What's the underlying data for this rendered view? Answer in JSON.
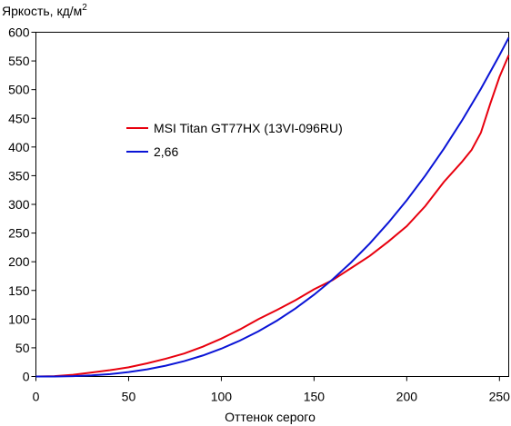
{
  "chart_data": {
    "type": "line",
    "title": "",
    "ylabel": "Яркость, кд/м",
    "ylabel_superscript": "2",
    "xlabel": "Оттенок серого",
    "xlim": [
      0,
      255
    ],
    "ylim": [
      0,
      600
    ],
    "x_ticks": [
      "0",
      "50",
      "100",
      "150",
      "200",
      "250"
    ],
    "y_ticks": [
      "0",
      "50",
      "100",
      "150",
      "200",
      "250",
      "300",
      "350",
      "400",
      "450",
      "500",
      "550",
      "600"
    ],
    "grid": false,
    "legend_position": "center-left",
    "series": [
      {
        "name": "MSI Titan GT77HX (13VI-096RU)",
        "color": "#e8000e",
        "points": [
          [
            0,
            0
          ],
          [
            10,
            0.5
          ],
          [
            20,
            3
          ],
          [
            30,
            7
          ],
          [
            40,
            11
          ],
          [
            50,
            16
          ],
          [
            60,
            23
          ],
          [
            70,
            31
          ],
          [
            80,
            40
          ],
          [
            90,
            52
          ],
          [
            100,
            66
          ],
          [
            110,
            82
          ],
          [
            120,
            100
          ],
          [
            130,
            116
          ],
          [
            140,
            133
          ],
          [
            150,
            152
          ],
          [
            160,
            168
          ],
          [
            170,
            189
          ],
          [
            180,
            210
          ],
          [
            190,
            235
          ],
          [
            200,
            262
          ],
          [
            210,
            297
          ],
          [
            220,
            339
          ],
          [
            230,
            375
          ],
          [
            235,
            395
          ],
          [
            240,
            425
          ],
          [
            245,
            475
          ],
          [
            250,
            522
          ],
          [
            255,
            560
          ]
        ]
      },
      {
        "name": "2,66",
        "color": "#0a14d6",
        "gamma": 2.66,
        "points": [
          [
            0,
            0
          ],
          [
            10,
            0.1
          ],
          [
            20,
            0.6
          ],
          [
            30,
            1.9
          ],
          [
            40,
            4.2
          ],
          [
            50,
            7.7
          ],
          [
            60,
            12.5
          ],
          [
            70,
            18.8
          ],
          [
            80,
            26.8
          ],
          [
            90,
            36.6
          ],
          [
            100,
            48.5
          ],
          [
            110,
            62.5
          ],
          [
            120,
            78.7
          ],
          [
            130,
            97.4
          ],
          [
            140,
            118.6
          ],
          [
            150,
            142.5
          ],
          [
            160,
            169.2
          ],
          [
            170,
            198.9
          ],
          [
            180,
            231.7
          ],
          [
            190,
            267.8
          ],
          [
            200,
            307.2
          ],
          [
            210,
            350.2
          ],
          [
            220,
            396.8
          ],
          [
            230,
            447.2
          ],
          [
            240,
            501.5
          ],
          [
            250,
            559.9
          ],
          [
            255,
            590.6
          ]
        ]
      }
    ]
  }
}
